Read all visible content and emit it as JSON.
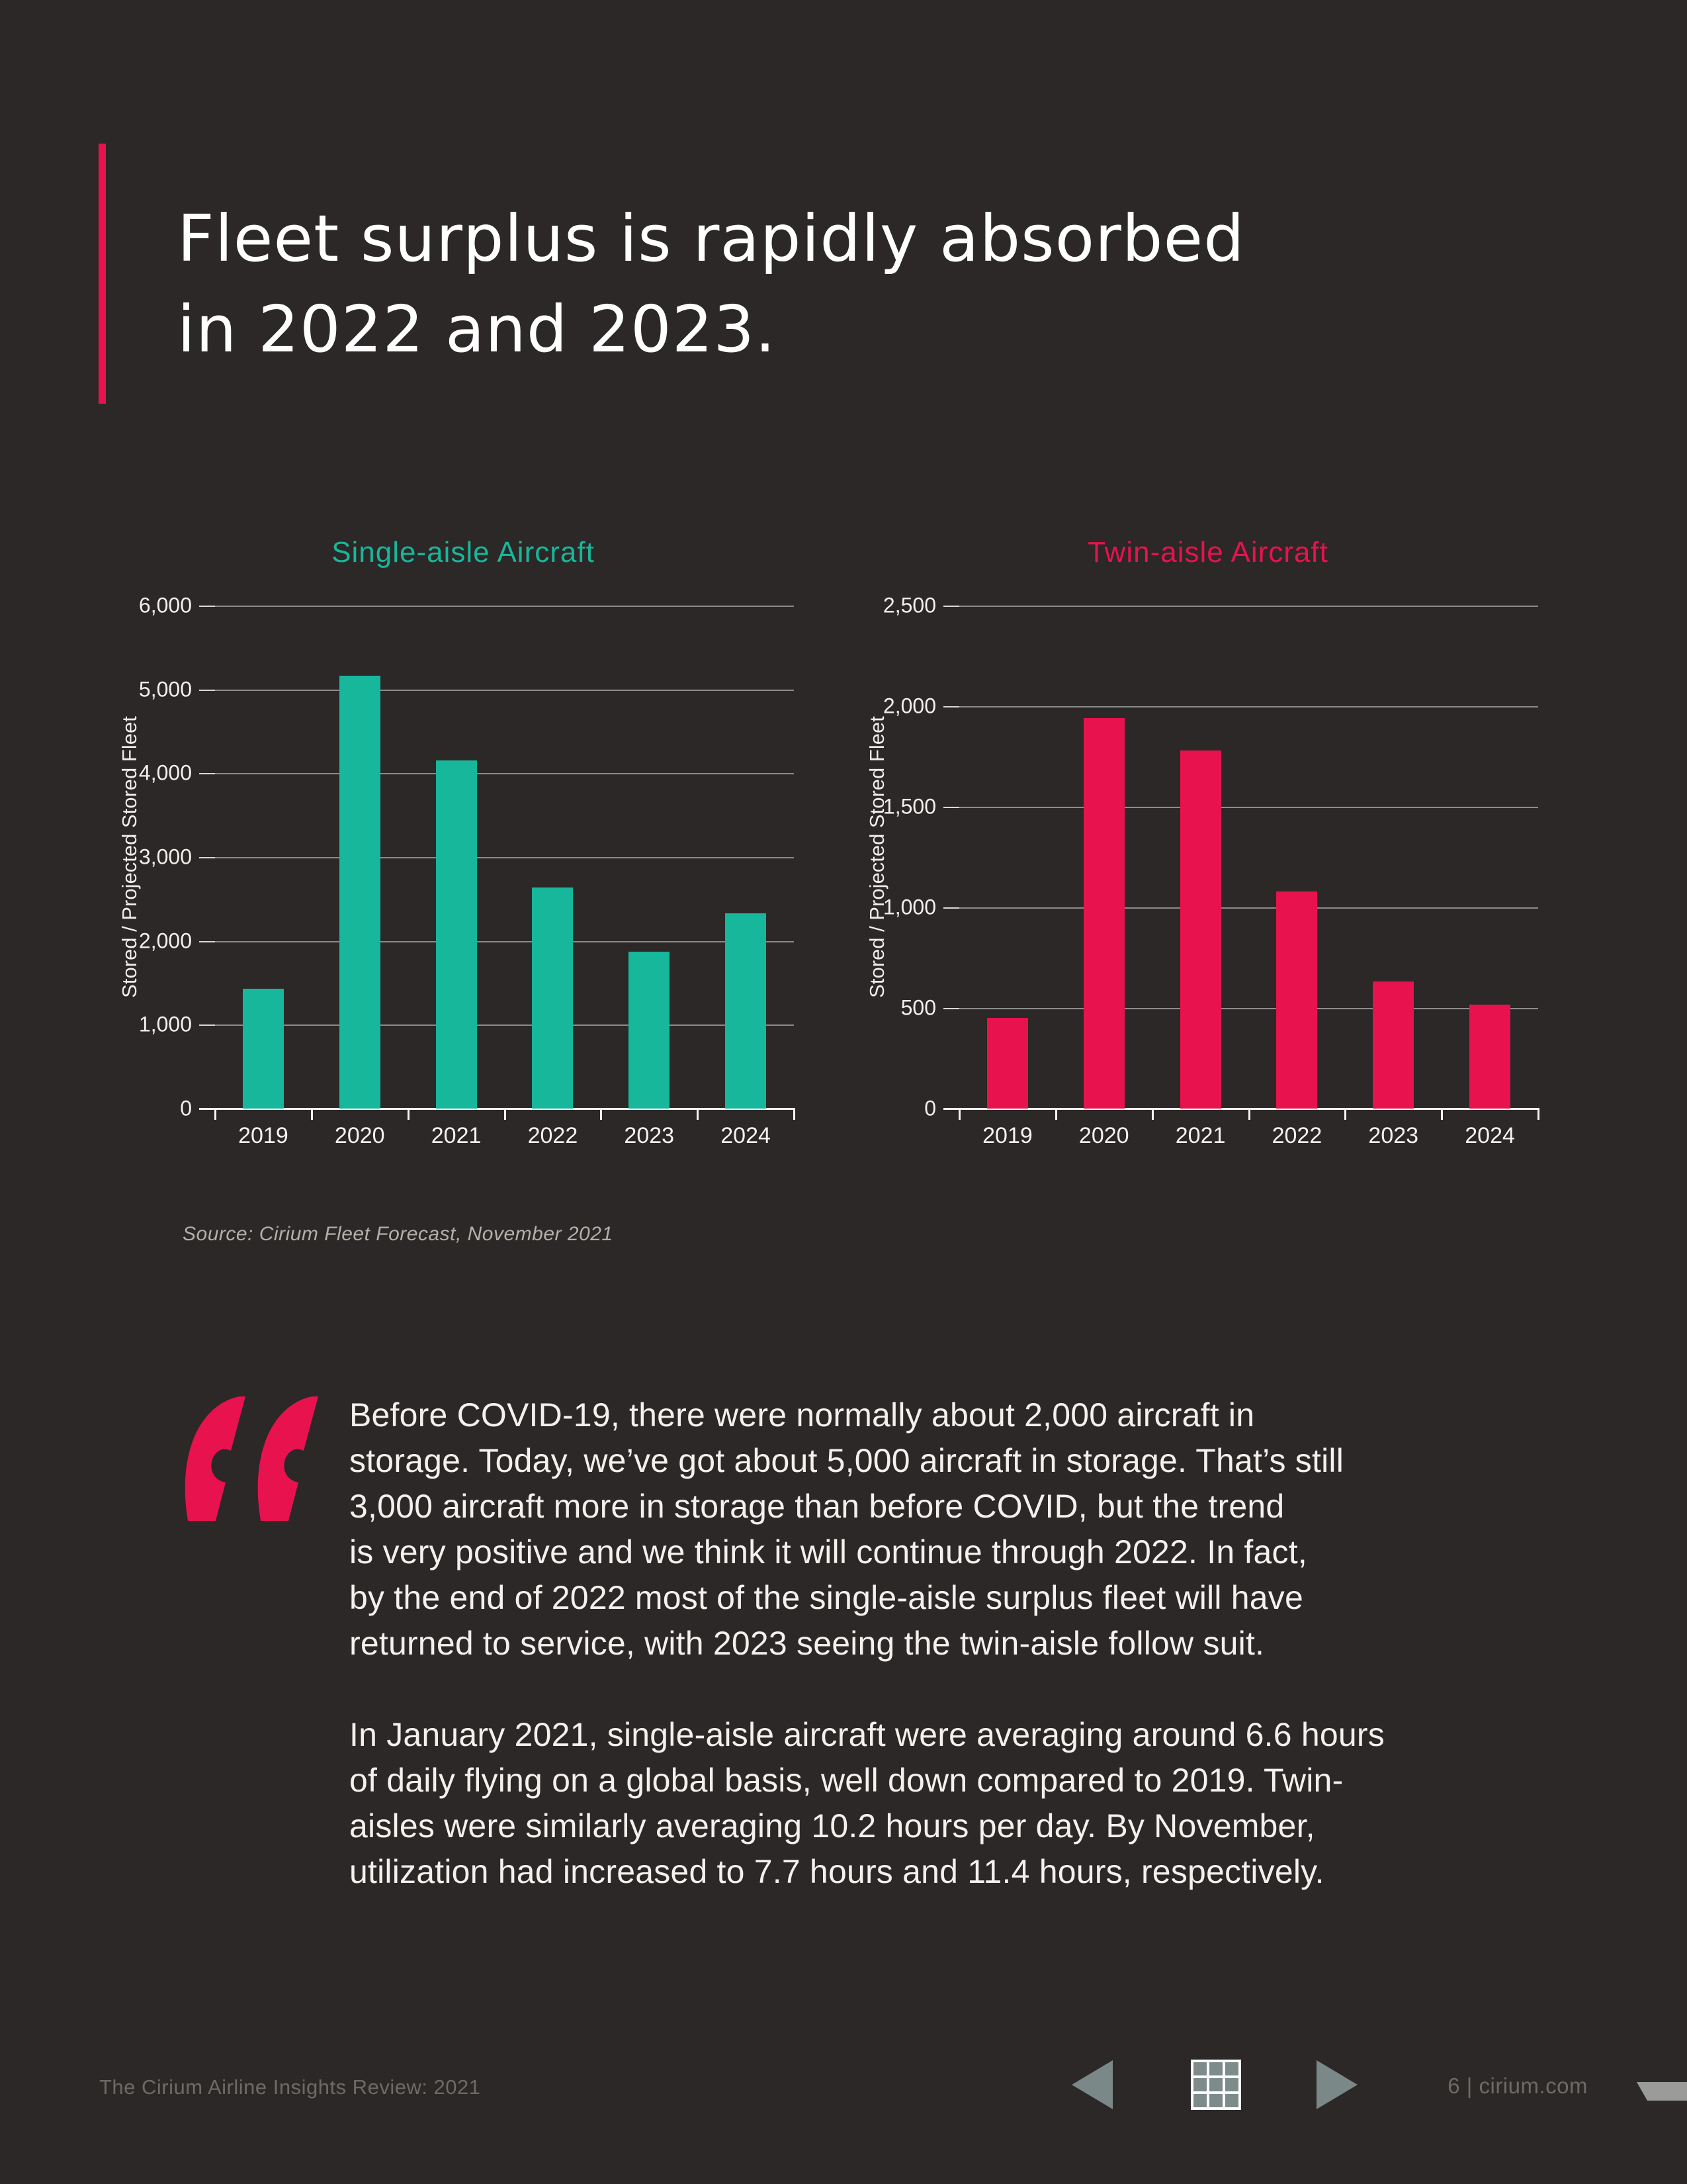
{
  "title": {
    "line1": "Fleet surplus is rapidly absorbed",
    "line2": "in 2022 and 2023."
  },
  "colors": {
    "background": "#2b2827",
    "accent_pink": "#e8124e",
    "teal": "#17b79b",
    "gridline": "#8b8b8b",
    "footer_gray": "#6e6b65",
    "nav_icon_gray": "#7b8888"
  },
  "chart_data": [
    {
      "type": "bar",
      "title": "Single-aisle Aircraft",
      "title_color": "#17b79b",
      "categories": [
        "2019",
        "2020",
        "2021",
        "2022",
        "2023",
        "2024"
      ],
      "values": [
        1430,
        5160,
        4150,
        2640,
        1870,
        2330
      ],
      "xlabel": "",
      "ylabel": "Stored / Projected Stored Fleet",
      "ylim": [
        0,
        6000
      ],
      "ytick_step": 1000,
      "ytick_labels": [
        "0",
        "1,000",
        "2,000",
        "3,000",
        "4,000",
        "5,000",
        "6,000"
      ],
      "bar_color": "#17b79b",
      "grid": true,
      "legend": "none"
    },
    {
      "type": "bar",
      "title": "Twin-aisle Aircraft",
      "title_color": "#e8124e",
      "categories": [
        "2019",
        "2020",
        "2021",
        "2022",
        "2023",
        "2024"
      ],
      "values": [
        450,
        1940,
        1780,
        1080,
        630,
        515
      ],
      "xlabel": "",
      "ylabel": "Stored / Projected Stored Fleet",
      "ylim": [
        0,
        2500
      ],
      "ytick_step": 500,
      "ytick_labels": [
        "0",
        "500",
        "1,000",
        "1,500",
        "2,000",
        "2,500"
      ],
      "bar_color": "#e8124e",
      "grid": true,
      "legend": "none"
    }
  ],
  "source_note": "Source: Cirium Fleet Forecast, November 2021",
  "quote": {
    "paragraph1_lines": [
      "Before COVID-19, there were normally about 2,000 aircraft in",
      "storage. Today, we’ve got about 5,000 aircraft in storage. That’s still",
      "3,000 aircraft more in storage than before COVID, but the trend",
      "is very positive and we think it will continue through 2022. In fact,",
      "by the end of 2022 most of the single-aisle surplus fleet will have",
      "returned to service, with 2023 seeing the twin-aisle follow suit."
    ],
    "paragraph2_lines": [
      "In January 2021, single-aisle aircraft were averaging around 6.6 hours",
      "of daily flying on a global basis, well down compared to 2019. Twin-",
      "aisles were similarly averaging 10.2 hours per day. By November,",
      "utilization had increased to 7.7 hours and 11.4 hours, respectively."
    ]
  },
  "footer": {
    "left_text": "The Cirium Airline Insights Review: 2021",
    "page_label": "6 | cirium.com"
  }
}
